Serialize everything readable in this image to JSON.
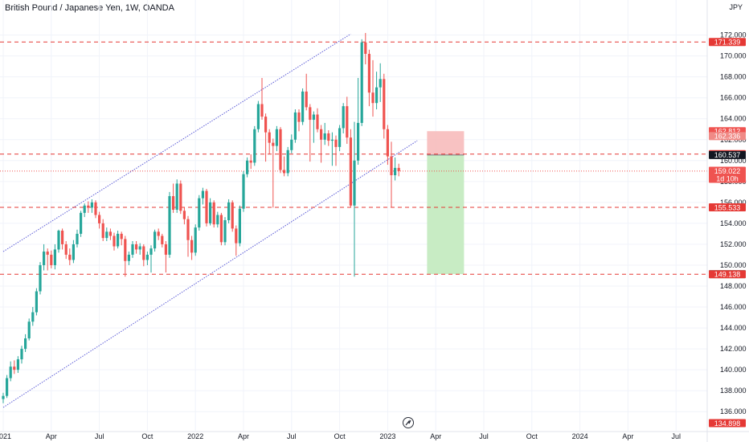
{
  "header": {
    "title": "British Pound / Japanese Yen, 1W, OANDA",
    "currency": "JPY"
  },
  "colors": {
    "up": "#26a69a",
    "down": "#ef5350",
    "channel": "#5b5bd6",
    "level": "#e53935",
    "stop_zone": "#f7b7b7",
    "target_zone": "#c8ecc4",
    "last_price_bg": "#131722"
  },
  "chart_data": {
    "type": "candlestick",
    "title": "British Pound / Japanese Yen, 1W, OANDA",
    "ylabel": "JPY",
    "ylim": [
      135.4,
      173.2
    ],
    "y_ticks": [
      136.0,
      138.0,
      140.0,
      142.0,
      144.0,
      146.0,
      148.0,
      150.0,
      152.0,
      154.0,
      156.0,
      158.0,
      160.0,
      162.0,
      164.0,
      166.0,
      168.0,
      170.0,
      172.0
    ],
    "x_ticks": [
      {
        "label": "2021",
        "week": 0
      },
      {
        "label": "Apr",
        "week": 13
      },
      {
        "label": "Jul",
        "week": 26
      },
      {
        "label": "Oct",
        "week": 39
      },
      {
        "label": "2022",
        "week": 52
      },
      {
        "label": "Apr",
        "week": 65
      },
      {
        "label": "Jul",
        "week": 78
      },
      {
        "label": "Oct",
        "week": 91
      },
      {
        "label": "2023",
        "week": 104
      },
      {
        "label": "Apr",
        "week": 117
      },
      {
        "label": "Jul",
        "week": 130
      },
      {
        "label": "Oct",
        "week": 143
      },
      {
        "label": "2024",
        "week": 156
      },
      {
        "label": "Apr",
        "week": 169
      },
      {
        "label": "Jul",
        "week": 182
      }
    ],
    "close_series": [
      137.5,
      139.2,
      140.3,
      140.0,
      141.0,
      142.0,
      143.0,
      144.6,
      145.5,
      147.5,
      150.0,
      151.3,
      151.0,
      150.0,
      151.5,
      153.3,
      152.0,
      151.0,
      150.5,
      152.0,
      153.0,
      155.0,
      155.7,
      155.5,
      156.0,
      154.8,
      154.0,
      152.6,
      153.2,
      152.8,
      151.8,
      153.0,
      152.5,
      150.4,
      151.0,
      152.0,
      151.5,
      151.8,
      150.5,
      151.0,
      151.6,
      153.2,
      152.8,
      152.0,
      151.0,
      156.6,
      155.3,
      157.8,
      155.2,
      154.4,
      152.4,
      151.2,
      153.6,
      156.4,
      157.1,
      154.0,
      156.0,
      153.9,
      154.8,
      152.2,
      154.3,
      156.0,
      153.5,
      152.1,
      155.4,
      158.7,
      160.0,
      159.8,
      163.0,
      165.4,
      164.2,
      162.7,
      161.7,
      161.4,
      163.0,
      159.1,
      158.8,
      161.0,
      162.0,
      164.6,
      163.7,
      166.6,
      165.1,
      163.9,
      164.4,
      163.0,
      162.0,
      162.6,
      161.9,
      162.0,
      161.3,
      163.1,
      165.2,
      162.2,
      155.7,
      160.0,
      163.6,
      171.3,
      170.2,
      166.5,
      165.5,
      167.0,
      167.8,
      163.0,
      160.4,
      158.6,
      159.3,
      159.0
    ],
    "candles": [
      {
        "o": 137.2,
        "h": 137.8,
        "l": 136.8,
        "c": 137.5
      },
      {
        "o": 137.5,
        "h": 139.5,
        "l": 137.3,
        "c": 139.2
      },
      {
        "o": 139.2,
        "h": 140.8,
        "l": 138.9,
        "c": 140.3
      },
      {
        "o": 140.3,
        "h": 140.9,
        "l": 139.6,
        "c": 140.0
      },
      {
        "o": 140.0,
        "h": 141.3,
        "l": 139.7,
        "c": 141.0
      },
      {
        "o": 141.0,
        "h": 142.3,
        "l": 140.6,
        "c": 142.0
      },
      {
        "o": 142.0,
        "h": 143.4,
        "l": 141.7,
        "c": 143.0
      },
      {
        "o": 143.0,
        "h": 144.9,
        "l": 142.8,
        "c": 144.6
      },
      {
        "o": 144.6,
        "h": 146.0,
        "l": 144.2,
        "c": 145.5
      },
      {
        "o": 145.5,
        "h": 147.8,
        "l": 145.2,
        "c": 147.5
      },
      {
        "o": 147.5,
        "h": 150.3,
        "l": 147.2,
        "c": 150.0
      },
      {
        "o": 150.0,
        "h": 152.0,
        "l": 149.5,
        "c": 151.3
      },
      {
        "o": 151.3,
        "h": 151.6,
        "l": 149.5,
        "c": 151.0
      },
      {
        "o": 151.0,
        "h": 151.4,
        "l": 149.7,
        "c": 150.0
      },
      {
        "o": 150.0,
        "h": 152.0,
        "l": 149.6,
        "c": 151.5
      },
      {
        "o": 151.5,
        "h": 153.4,
        "l": 151.2,
        "c": 153.3
      },
      {
        "o": 153.3,
        "h": 153.5,
        "l": 151.5,
        "c": 152.0
      },
      {
        "o": 152.0,
        "h": 152.3,
        "l": 150.6,
        "c": 151.0
      },
      {
        "o": 151.0,
        "h": 151.6,
        "l": 150.0,
        "c": 150.5
      },
      {
        "o": 150.5,
        "h": 152.4,
        "l": 150.2,
        "c": 152.0
      },
      {
        "o": 152.0,
        "h": 153.4,
        "l": 151.7,
        "c": 153.0
      },
      {
        "o": 153.0,
        "h": 155.2,
        "l": 152.7,
        "c": 155.0
      },
      {
        "o": 155.0,
        "h": 155.9,
        "l": 154.6,
        "c": 155.7
      },
      {
        "o": 155.7,
        "h": 156.1,
        "l": 155.0,
        "c": 155.5
      },
      {
        "o": 155.5,
        "h": 156.3,
        "l": 155.0,
        "c": 156.0
      },
      {
        "o": 156.0,
        "h": 156.2,
        "l": 154.5,
        "c": 154.8
      },
      {
        "o": 154.8,
        "h": 155.1,
        "l": 153.5,
        "c": 154.0
      },
      {
        "o": 154.0,
        "h": 154.4,
        "l": 152.3,
        "c": 152.6
      },
      {
        "o": 152.6,
        "h": 153.6,
        "l": 152.3,
        "c": 153.2
      },
      {
        "o": 153.2,
        "h": 153.5,
        "l": 152.4,
        "c": 152.8
      },
      {
        "o": 152.8,
        "h": 153.1,
        "l": 151.4,
        "c": 151.8
      },
      {
        "o": 151.8,
        "h": 153.3,
        "l": 151.6,
        "c": 153.0
      },
      {
        "o": 153.0,
        "h": 153.2,
        "l": 151.9,
        "c": 152.5
      },
      {
        "o": 152.5,
        "h": 152.8,
        "l": 148.9,
        "c": 150.4
      },
      {
        "o": 150.4,
        "h": 151.3,
        "l": 150.0,
        "c": 151.0
      },
      {
        "o": 151.0,
        "h": 152.3,
        "l": 150.7,
        "c": 152.0
      },
      {
        "o": 152.0,
        "h": 152.3,
        "l": 151.1,
        "c": 151.5
      },
      {
        "o": 151.5,
        "h": 152.1,
        "l": 151.0,
        "c": 151.8
      },
      {
        "o": 151.8,
        "h": 152.0,
        "l": 149.9,
        "c": 150.5
      },
      {
        "o": 150.5,
        "h": 151.3,
        "l": 150.0,
        "c": 151.0
      },
      {
        "o": 151.0,
        "h": 151.9,
        "l": 149.3,
        "c": 151.6
      },
      {
        "o": 151.6,
        "h": 153.4,
        "l": 151.3,
        "c": 153.2
      },
      {
        "o": 153.2,
        "h": 153.5,
        "l": 152.4,
        "c": 152.8
      },
      {
        "o": 152.8,
        "h": 153.0,
        "l": 151.7,
        "c": 152.0
      },
      {
        "o": 152.0,
        "h": 152.3,
        "l": 149.3,
        "c": 151.0
      },
      {
        "o": 151.0,
        "h": 157.0,
        "l": 150.7,
        "c": 156.6
      },
      {
        "o": 156.6,
        "h": 157.8,
        "l": 155.0,
        "c": 155.3
      },
      {
        "o": 155.3,
        "h": 158.2,
        "l": 155.0,
        "c": 157.8
      },
      {
        "o": 157.8,
        "h": 158.1,
        "l": 154.9,
        "c": 155.2
      },
      {
        "o": 155.2,
        "h": 155.5,
        "l": 153.9,
        "c": 154.4
      },
      {
        "o": 154.4,
        "h": 154.7,
        "l": 150.8,
        "c": 152.4
      },
      {
        "o": 152.4,
        "h": 152.8,
        "l": 150.5,
        "c": 151.2
      },
      {
        "o": 151.2,
        "h": 153.9,
        "l": 150.9,
        "c": 153.6
      },
      {
        "o": 153.6,
        "h": 156.7,
        "l": 153.3,
        "c": 156.4
      },
      {
        "o": 156.4,
        "h": 157.4,
        "l": 155.8,
        "c": 157.1
      },
      {
        "o": 157.1,
        "h": 157.3,
        "l": 153.7,
        "c": 154.0
      },
      {
        "o": 154.0,
        "h": 156.4,
        "l": 153.8,
        "c": 156.0
      },
      {
        "o": 156.0,
        "h": 156.2,
        "l": 153.6,
        "c": 153.9
      },
      {
        "o": 153.9,
        "h": 155.1,
        "l": 153.6,
        "c": 154.8
      },
      {
        "o": 154.8,
        "h": 155.0,
        "l": 151.9,
        "c": 152.2
      },
      {
        "o": 152.2,
        "h": 154.6,
        "l": 151.9,
        "c": 154.3
      },
      {
        "o": 154.3,
        "h": 156.3,
        "l": 154.0,
        "c": 156.0
      },
      {
        "o": 156.0,
        "h": 156.2,
        "l": 153.2,
        "c": 153.5
      },
      {
        "o": 153.5,
        "h": 153.8,
        "l": 150.9,
        "c": 152.1
      },
      {
        "o": 152.1,
        "h": 155.7,
        "l": 151.8,
        "c": 155.4
      },
      {
        "o": 155.4,
        "h": 159.0,
        "l": 155.1,
        "c": 158.7
      },
      {
        "o": 158.7,
        "h": 160.3,
        "l": 158.4,
        "c": 160.0
      },
      {
        "o": 160.0,
        "h": 160.6,
        "l": 159.2,
        "c": 159.8
      },
      {
        "o": 159.8,
        "h": 163.3,
        "l": 159.5,
        "c": 163.0
      },
      {
        "o": 163.0,
        "h": 165.7,
        "l": 162.7,
        "c": 165.4
      },
      {
        "o": 165.4,
        "h": 167.9,
        "l": 163.9,
        "c": 164.2
      },
      {
        "o": 164.2,
        "h": 164.5,
        "l": 159.9,
        "c": 162.7
      },
      {
        "o": 162.7,
        "h": 163.0,
        "l": 160.6,
        "c": 161.7
      },
      {
        "o": 161.7,
        "h": 162.1,
        "l": 155.5,
        "c": 161.4
      },
      {
        "o": 161.4,
        "h": 163.3,
        "l": 160.9,
        "c": 163.0
      },
      {
        "o": 163.0,
        "h": 163.2,
        "l": 158.8,
        "c": 159.1
      },
      {
        "o": 159.1,
        "h": 160.4,
        "l": 158.5,
        "c": 158.8
      },
      {
        "o": 158.8,
        "h": 161.3,
        "l": 158.5,
        "c": 161.0
      },
      {
        "o": 161.0,
        "h": 162.5,
        "l": 160.7,
        "c": 162.0
      },
      {
        "o": 162.0,
        "h": 164.9,
        "l": 161.7,
        "c": 164.6
      },
      {
        "o": 164.6,
        "h": 164.9,
        "l": 162.8,
        "c": 163.7
      },
      {
        "o": 163.7,
        "h": 166.9,
        "l": 163.4,
        "c": 166.6
      },
      {
        "o": 166.6,
        "h": 168.3,
        "l": 164.8,
        "c": 165.1
      },
      {
        "o": 165.1,
        "h": 165.4,
        "l": 159.9,
        "c": 163.9
      },
      {
        "o": 163.9,
        "h": 164.7,
        "l": 161.7,
        "c": 164.4
      },
      {
        "o": 164.4,
        "h": 165.0,
        "l": 162.7,
        "c": 163.0
      },
      {
        "o": 163.0,
        "h": 163.4,
        "l": 159.8,
        "c": 162.0
      },
      {
        "o": 162.0,
        "h": 163.6,
        "l": 161.5,
        "c": 162.6
      },
      {
        "o": 162.6,
        "h": 162.9,
        "l": 161.4,
        "c": 161.9
      },
      {
        "o": 161.9,
        "h": 162.7,
        "l": 159.5,
        "c": 162.0
      },
      {
        "o": 162.0,
        "h": 162.4,
        "l": 159.5,
        "c": 161.3
      },
      {
        "o": 161.3,
        "h": 163.4,
        "l": 160.9,
        "c": 163.1
      },
      {
        "o": 163.1,
        "h": 165.5,
        "l": 162.6,
        "c": 165.2
      },
      {
        "o": 165.2,
        "h": 166.1,
        "l": 161.6,
        "c": 162.2
      },
      {
        "o": 162.2,
        "h": 163.0,
        "l": 155.5,
        "c": 155.7
      },
      {
        "o": 155.7,
        "h": 163.7,
        "l": 148.9,
        "c": 160.0
      },
      {
        "o": 160.0,
        "h": 167.9,
        "l": 159.6,
        "c": 163.6
      },
      {
        "o": 163.6,
        "h": 171.6,
        "l": 163.3,
        "c": 171.3
      },
      {
        "o": 171.3,
        "h": 172.2,
        "l": 169.2,
        "c": 170.2
      },
      {
        "o": 170.2,
        "h": 170.6,
        "l": 165.2,
        "c": 166.5
      },
      {
        "o": 166.5,
        "h": 169.6,
        "l": 164.2,
        "c": 165.5
      },
      {
        "o": 165.5,
        "h": 168.5,
        "l": 164.9,
        "c": 167.0
      },
      {
        "o": 167.0,
        "h": 169.3,
        "l": 165.6,
        "c": 167.8
      },
      {
        "o": 167.8,
        "h": 168.3,
        "l": 162.1,
        "c": 163.0
      },
      {
        "o": 163.0,
        "h": 163.4,
        "l": 159.6,
        "c": 160.4
      },
      {
        "o": 160.4,
        "h": 161.8,
        "l": 155.5,
        "c": 158.6
      },
      {
        "o": 158.6,
        "h": 160.3,
        "l": 158.1,
        "c": 159.3
      },
      {
        "o": 159.3,
        "h": 159.7,
        "l": 158.5,
        "c": 159.0
      }
    ],
    "levels": [
      171.339,
      160.619,
      155.533,
      149.138
    ],
    "channel": {
      "upper": [
        {
          "week": 0,
          "value": 151.3
        },
        {
          "week": 94,
          "value": 172.1
        }
      ],
      "lower": [
        {
          "week": 0,
          "value": 136.4
        },
        {
          "week": 112,
          "value": 161.9
        }
      ]
    },
    "position": {
      "start_week": 114,
      "end_week": 124,
      "entry": 160.537,
      "stop": 162.812,
      "target": 149.143
    }
  },
  "price_labels": [
    {
      "text": "171.339",
      "value": 171.339,
      "bg": "#e53935",
      "fg": "#ffffff"
    },
    {
      "text": "162.812",
      "value": 162.812,
      "bg": "#ef5350",
      "fg": "#ffffff"
    },
    {
      "text": "162.336",
      "value": 162.336,
      "bg": "#f08a86",
      "fg": "#ffffff"
    },
    {
      "text": "160.619",
      "value": 160.619,
      "bg": "#e53935",
      "fg": "#ffffff"
    },
    {
      "text": "160.537",
      "value": 160.537,
      "bg": "#131722",
      "fg": "#ffffff"
    },
    {
      "text": "159.022",
      "sub": "1d 10h",
      "value": 159.022,
      "bg": "#ef5350",
      "fg": "#ffffff"
    },
    {
      "text": "155.533",
      "value": 155.533,
      "bg": "#e53935",
      "fg": "#ffffff"
    },
    {
      "text": "149.143",
      "value": 149.143,
      "bg": "#26a69a",
      "fg": "#ffffff"
    },
    {
      "text": "149.138",
      "value": 149.138,
      "bg": "#e53935",
      "fg": "#ffffff"
    },
    {
      "text": "134.898",
      "value": 134.898,
      "bg": "#e53935",
      "fg": "#ffffff"
    }
  ],
  "watermark_icon": "tradingview-logo-icon"
}
